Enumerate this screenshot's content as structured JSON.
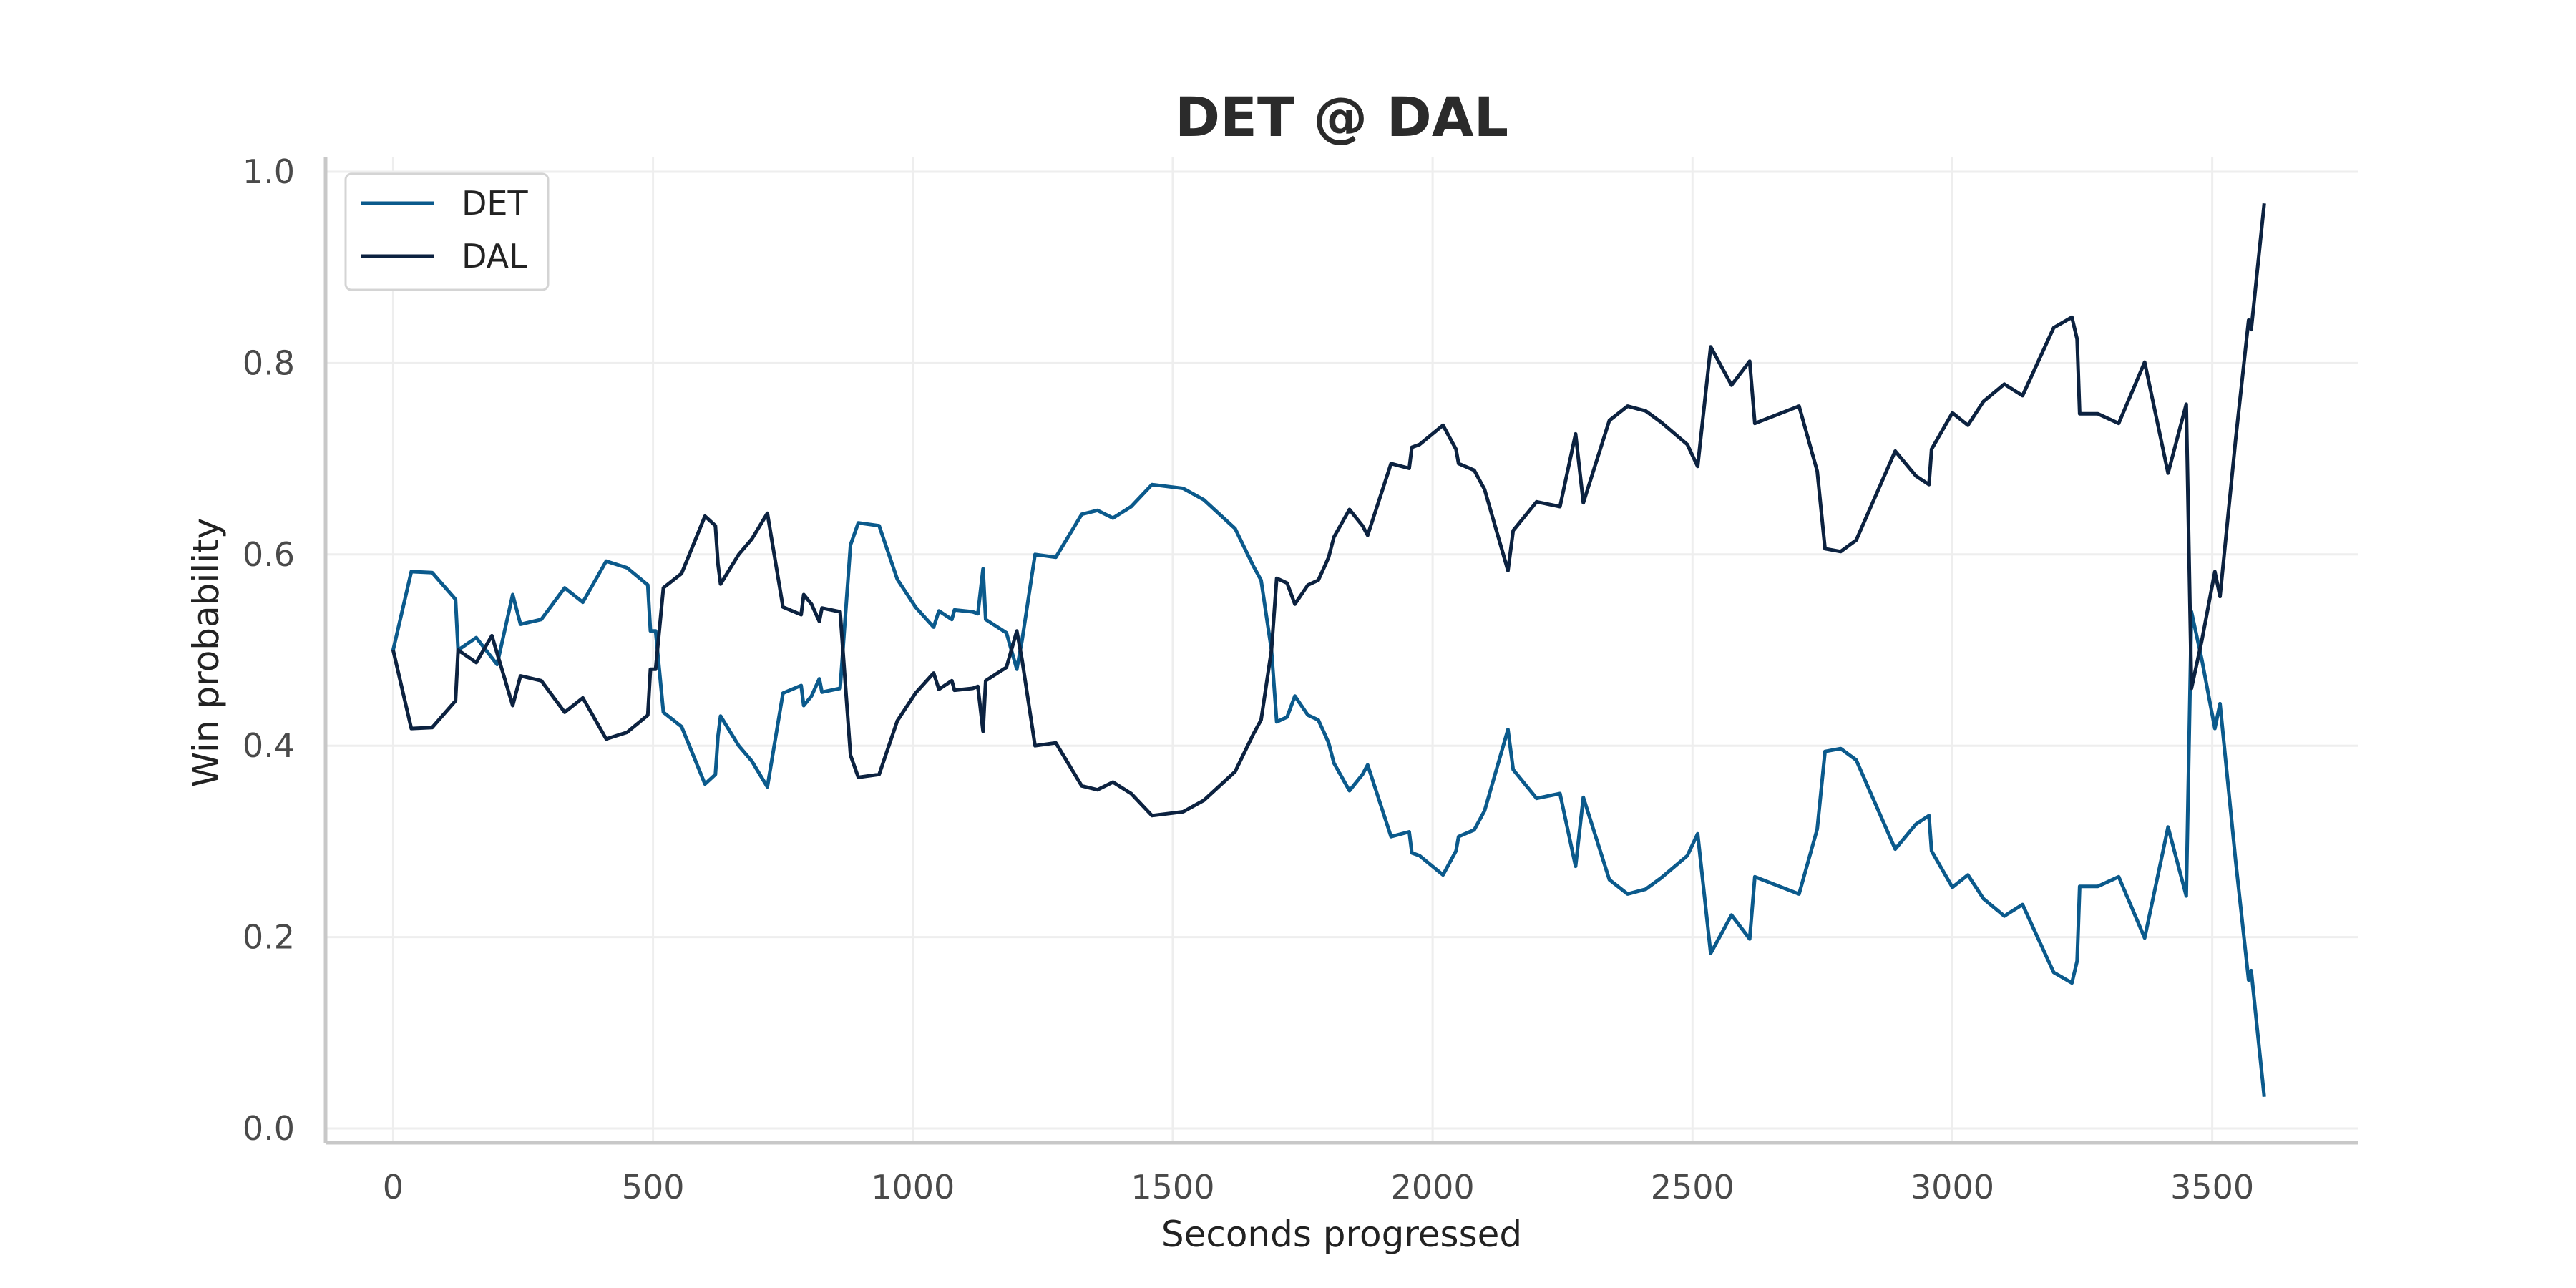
{
  "chart_data": {
    "type": "line",
    "title": "DET @ DAL",
    "xlabel": "Seconds progressed",
    "ylabel": "Win probability",
    "xlim": [
      -130,
      3780
    ],
    "ylim": [
      -0.015,
      1.015
    ],
    "xticks": [
      0,
      500,
      1000,
      1500,
      2000,
      2500,
      3000,
      3500
    ],
    "yticks": [
      0.0,
      0.2,
      0.4,
      0.6,
      0.8,
      1.0
    ],
    "xtick_labels": [
      "0",
      "500",
      "1000",
      "1500",
      "2000",
      "2500",
      "3000",
      "3500"
    ],
    "ytick_labels": [
      "0.0",
      "0.2",
      "0.4",
      "0.6",
      "0.8",
      "1.0"
    ],
    "grid": true,
    "legend_position": "top-left",
    "colors": {
      "DET": "#0b5a8c",
      "DAL": "#0c2240"
    },
    "series": [
      {
        "name": "DET",
        "color": "#0b5a8c",
        "points": [
          [
            0,
            0.5
          ],
          [
            35,
            0.582
          ],
          [
            75,
            0.581
          ],
          [
            120,
            0.553
          ],
          [
            125,
            0.5
          ],
          [
            160,
            0.513
          ],
          [
            200,
            0.485
          ],
          [
            230,
            0.558
          ],
          [
            245,
            0.527
          ],
          [
            285,
            0.532
          ],
          [
            330,
            0.565
          ],
          [
            365,
            0.55
          ],
          [
            410,
            0.593
          ],
          [
            450,
            0.586
          ],
          [
            490,
            0.568
          ],
          [
            495,
            0.52
          ],
          [
            505,
            0.52
          ],
          [
            520,
            0.435
          ],
          [
            555,
            0.42
          ],
          [
            600,
            0.36
          ],
          [
            620,
            0.37
          ],
          [
            625,
            0.41
          ],
          [
            630,
            0.431
          ],
          [
            665,
            0.4
          ],
          [
            690,
            0.384
          ],
          [
            720,
            0.357
          ],
          [
            750,
            0.455
          ],
          [
            785,
            0.463
          ],
          [
            790,
            0.442
          ],
          [
            805,
            0.452
          ],
          [
            820,
            0.47
          ],
          [
            825,
            0.456
          ],
          [
            860,
            0.46
          ],
          [
            880,
            0.61
          ],
          [
            895,
            0.633
          ],
          [
            935,
            0.63
          ],
          [
            970,
            0.574
          ],
          [
            1005,
            0.545
          ],
          [
            1040,
            0.524
          ],
          [
            1050,
            0.541
          ],
          [
            1075,
            0.532
          ],
          [
            1080,
            0.542
          ],
          [
            1115,
            0.54
          ],
          [
            1125,
            0.538
          ],
          [
            1135,
            0.585
          ],
          [
            1140,
            0.532
          ],
          [
            1180,
            0.518
          ],
          [
            1200,
            0.48
          ],
          [
            1210,
            0.51
          ],
          [
            1235,
            0.6
          ],
          [
            1275,
            0.597
          ],
          [
            1325,
            0.642
          ],
          [
            1355,
            0.646
          ],
          [
            1385,
            0.638
          ],
          [
            1420,
            0.65
          ],
          [
            1460,
            0.673
          ],
          [
            1520,
            0.669
          ],
          [
            1560,
            0.657
          ],
          [
            1610,
            0.632
          ],
          [
            1620,
            0.627
          ],
          [
            1655,
            0.588
          ],
          [
            1670,
            0.573
          ],
          [
            1690,
            0.5
          ],
          [
            1700,
            0.425
          ],
          [
            1720,
            0.43
          ],
          [
            1735,
            0.452
          ],
          [
            1760,
            0.432
          ],
          [
            1780,
            0.427
          ],
          [
            1790,
            0.415
          ],
          [
            1800,
            0.403
          ],
          [
            1810,
            0.382
          ],
          [
            1840,
            0.353
          ],
          [
            1865,
            0.37
          ],
          [
            1875,
            0.38
          ],
          [
            1920,
            0.305
          ],
          [
            1955,
            0.31
          ],
          [
            1960,
            0.288
          ],
          [
            1975,
            0.285
          ],
          [
            2020,
            0.265
          ],
          [
            2045,
            0.29
          ],
          [
            2050,
            0.305
          ],
          [
            2080,
            0.312
          ],
          [
            2100,
            0.332
          ],
          [
            2145,
            0.417
          ],
          [
            2155,
            0.375
          ],
          [
            2200,
            0.345
          ],
          [
            2245,
            0.35
          ],
          [
            2275,
            0.274
          ],
          [
            2290,
            0.346
          ],
          [
            2340,
            0.26
          ],
          [
            2375,
            0.245
          ],
          [
            2410,
            0.25
          ],
          [
            2440,
            0.262
          ],
          [
            2490,
            0.285
          ],
          [
            2510,
            0.308
          ],
          [
            2535,
            0.183
          ],
          [
            2575,
            0.223
          ],
          [
            2610,
            0.198
          ],
          [
            2620,
            0.263
          ],
          [
            2705,
            0.245
          ],
          [
            2740,
            0.313
          ],
          [
            2755,
            0.394
          ],
          [
            2785,
            0.397
          ],
          [
            2815,
            0.385
          ],
          [
            2890,
            0.292
          ],
          [
            2930,
            0.318
          ],
          [
            2955,
            0.327
          ],
          [
            2960,
            0.29
          ],
          [
            3000,
            0.252
          ],
          [
            3030,
            0.265
          ],
          [
            3060,
            0.24
          ],
          [
            3100,
            0.222
          ],
          [
            3135,
            0.234
          ],
          [
            3195,
            0.163
          ],
          [
            3230,
            0.152
          ],
          [
            3240,
            0.175
          ],
          [
            3245,
            0.253
          ],
          [
            3280,
            0.253
          ],
          [
            3320,
            0.263
          ],
          [
            3370,
            0.199
          ],
          [
            3415,
            0.315
          ],
          [
            3450,
            0.243
          ],
          [
            3460,
            0.54
          ],
          [
            3480,
            0.49
          ],
          [
            3505,
            0.418
          ],
          [
            3515,
            0.444
          ],
          [
            3545,
            0.28
          ],
          [
            3570,
            0.155
          ],
          [
            3575,
            0.165
          ],
          [
            3600,
            0.033
          ]
        ]
      },
      {
        "name": "DAL",
        "color": "#0c2240",
        "points": [
          [
            0,
            0.5
          ],
          [
            35,
            0.418
          ],
          [
            75,
            0.419
          ],
          [
            120,
            0.447
          ],
          [
            125,
            0.5
          ],
          [
            160,
            0.487
          ],
          [
            190,
            0.515
          ],
          [
            230,
            0.442
          ],
          [
            245,
            0.473
          ],
          [
            285,
            0.468
          ],
          [
            330,
            0.435
          ],
          [
            365,
            0.45
          ],
          [
            410,
            0.407
          ],
          [
            450,
            0.414
          ],
          [
            490,
            0.432
          ],
          [
            495,
            0.48
          ],
          [
            505,
            0.48
          ],
          [
            520,
            0.565
          ],
          [
            555,
            0.58
          ],
          [
            600,
            0.64
          ],
          [
            620,
            0.63
          ],
          [
            625,
            0.59
          ],
          [
            630,
            0.569
          ],
          [
            665,
            0.6
          ],
          [
            690,
            0.616
          ],
          [
            720,
            0.643
          ],
          [
            750,
            0.545
          ],
          [
            785,
            0.537
          ],
          [
            790,
            0.558
          ],
          [
            805,
            0.548
          ],
          [
            820,
            0.53
          ],
          [
            825,
            0.544
          ],
          [
            860,
            0.54
          ],
          [
            880,
            0.39
          ],
          [
            895,
            0.367
          ],
          [
            935,
            0.37
          ],
          [
            970,
            0.426
          ],
          [
            1005,
            0.455
          ],
          [
            1040,
            0.476
          ],
          [
            1050,
            0.459
          ],
          [
            1075,
            0.468
          ],
          [
            1080,
            0.458
          ],
          [
            1115,
            0.46
          ],
          [
            1125,
            0.462
          ],
          [
            1135,
            0.415
          ],
          [
            1140,
            0.468
          ],
          [
            1180,
            0.482
          ],
          [
            1200,
            0.52
          ],
          [
            1210,
            0.49
          ],
          [
            1235,
            0.4
          ],
          [
            1275,
            0.403
          ],
          [
            1325,
            0.358
          ],
          [
            1355,
            0.354
          ],
          [
            1385,
            0.362
          ],
          [
            1420,
            0.35
          ],
          [
            1460,
            0.327
          ],
          [
            1520,
            0.331
          ],
          [
            1560,
            0.343
          ],
          [
            1610,
            0.368
          ],
          [
            1620,
            0.373
          ],
          [
            1655,
            0.412
          ],
          [
            1670,
            0.427
          ],
          [
            1690,
            0.5
          ],
          [
            1700,
            0.575
          ],
          [
            1720,
            0.57
          ],
          [
            1735,
            0.548
          ],
          [
            1760,
            0.568
          ],
          [
            1780,
            0.573
          ],
          [
            1790,
            0.585
          ],
          [
            1800,
            0.597
          ],
          [
            1810,
            0.618
          ],
          [
            1840,
            0.647
          ],
          [
            1865,
            0.63
          ],
          [
            1875,
            0.62
          ],
          [
            1920,
            0.695
          ],
          [
            1955,
            0.69
          ],
          [
            1960,
            0.712
          ],
          [
            1975,
            0.715
          ],
          [
            2020,
            0.735
          ],
          [
            2045,
            0.71
          ],
          [
            2050,
            0.695
          ],
          [
            2080,
            0.688
          ],
          [
            2100,
            0.668
          ],
          [
            2145,
            0.583
          ],
          [
            2155,
            0.625
          ],
          [
            2200,
            0.655
          ],
          [
            2245,
            0.65
          ],
          [
            2275,
            0.726
          ],
          [
            2290,
            0.654
          ],
          [
            2340,
            0.74
          ],
          [
            2375,
            0.755
          ],
          [
            2410,
            0.75
          ],
          [
            2440,
            0.738
          ],
          [
            2490,
            0.715
          ],
          [
            2510,
            0.692
          ],
          [
            2535,
            0.817
          ],
          [
            2575,
            0.777
          ],
          [
            2610,
            0.802
          ],
          [
            2620,
            0.737
          ],
          [
            2705,
            0.755
          ],
          [
            2740,
            0.687
          ],
          [
            2755,
            0.606
          ],
          [
            2785,
            0.603
          ],
          [
            2815,
            0.615
          ],
          [
            2890,
            0.708
          ],
          [
            2930,
            0.682
          ],
          [
            2955,
            0.673
          ],
          [
            2960,
            0.71
          ],
          [
            3000,
            0.748
          ],
          [
            3030,
            0.735
          ],
          [
            3060,
            0.76
          ],
          [
            3100,
            0.778
          ],
          [
            3135,
            0.766
          ],
          [
            3195,
            0.837
          ],
          [
            3230,
            0.848
          ],
          [
            3240,
            0.825
          ],
          [
            3245,
            0.747
          ],
          [
            3280,
            0.747
          ],
          [
            3320,
            0.737
          ],
          [
            3370,
            0.801
          ],
          [
            3415,
            0.685
          ],
          [
            3450,
            0.757
          ],
          [
            3460,
            0.46
          ],
          [
            3480,
            0.51
          ],
          [
            3505,
            0.582
          ],
          [
            3515,
            0.556
          ],
          [
            3545,
            0.72
          ],
          [
            3570,
            0.845
          ],
          [
            3575,
            0.835
          ],
          [
            3600,
            0.967
          ]
        ]
      }
    ]
  }
}
